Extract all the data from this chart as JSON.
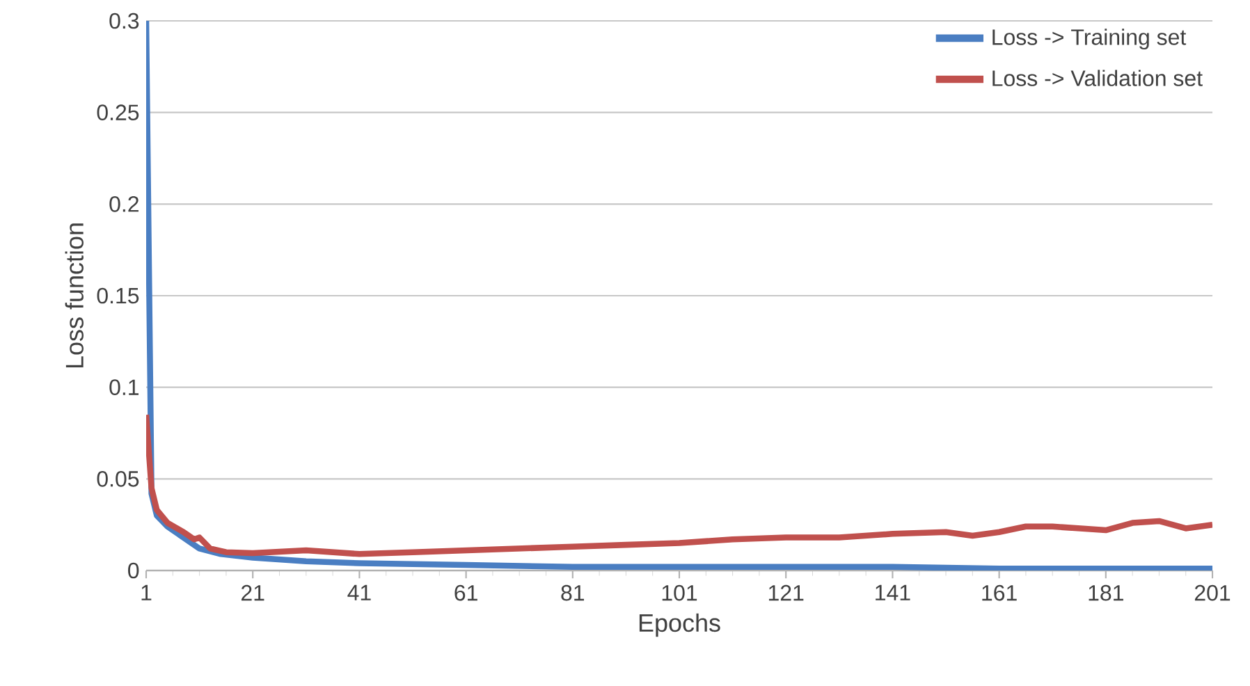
{
  "chart_data": {
    "type": "line",
    "xlabel": "Epochs",
    "ylabel": "Loss function",
    "xlim": [
      1,
      201
    ],
    "xticks": [
      1,
      21,
      41,
      61,
      81,
      101,
      121,
      141,
      161,
      181,
      201
    ],
    "ylim": [
      0,
      0.3
    ],
    "yticks": [
      0,
      0.05,
      0.1,
      0.15,
      0.2,
      0.25,
      0.3
    ],
    "grid": "y",
    "legend": "top right",
    "marker": "none",
    "line_style": "solid",
    "series": [
      {
        "name": "Loss -> Training set",
        "color": "#4a7ec2",
        "x": [
          1,
          2,
          3,
          5,
          8,
          11,
          15,
          21,
          31,
          41,
          61,
          81,
          101,
          121,
          141,
          161,
          181,
          201
        ],
        "values": [
          0.3,
          0.042,
          0.03,
          0.024,
          0.018,
          0.012,
          0.009,
          0.007,
          0.005,
          0.004,
          0.003,
          0.002,
          0.002,
          0.002,
          0.002,
          0.001,
          0.001,
          0.001
        ]
      },
      {
        "name": "Loss -> Validation set",
        "color": "#c0504d",
        "x": [
          1,
          2,
          3,
          5,
          8,
          10,
          11,
          13,
          16,
          21,
          31,
          41,
          51,
          61,
          71,
          81,
          91,
          101,
          111,
          121,
          131,
          141,
          151,
          156,
          161,
          166,
          171,
          181,
          186,
          191,
          196,
          201
        ],
        "values": [
          0.085,
          0.045,
          0.033,
          0.026,
          0.021,
          0.017,
          0.018,
          0.012,
          0.01,
          0.0095,
          0.011,
          0.009,
          0.01,
          0.011,
          0.012,
          0.013,
          0.014,
          0.015,
          0.017,
          0.018,
          0.018,
          0.02,
          0.021,
          0.019,
          0.021,
          0.024,
          0.024,
          0.022,
          0.026,
          0.027,
          0.023,
          0.025
        ]
      }
    ]
  }
}
